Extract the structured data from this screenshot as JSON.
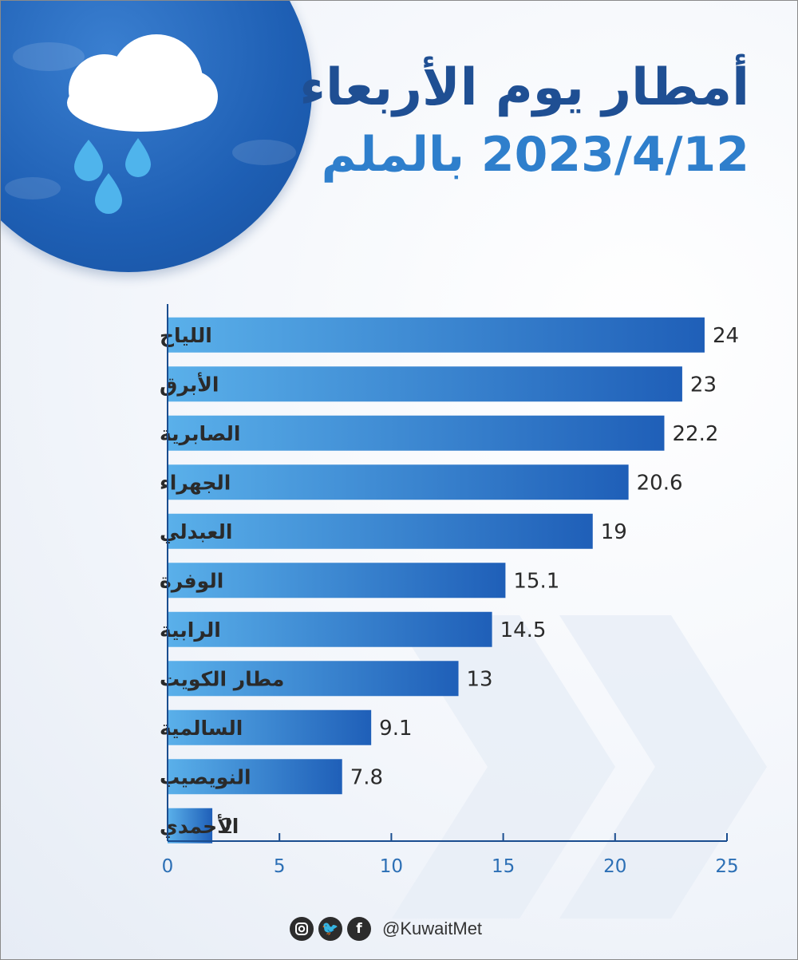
{
  "title": {
    "line1": "أمطار يوم الأربعاء",
    "line2": "2023/4/12 بالملم"
  },
  "footer": {
    "handle": "@KuwaitMet",
    "icons": [
      "instagram-icon",
      "twitter-icon",
      "facebook-icon"
    ],
    "twitter_glyph": "🐦",
    "facebook_glyph": "f"
  },
  "colors": {
    "bar_light": "#5ab0ea",
    "bar_dark": "#1f5fb8",
    "title_dark": "#1f4f93",
    "title_light": "#2f7fcc",
    "axis": "#1a4d8f"
  },
  "chart_data": {
    "type": "bar",
    "orientation": "horizontal",
    "title": "أمطار يوم الأربعاء 2023/4/12 بالملم",
    "categories": [
      "اللياح",
      "الأبرق",
      "الصابرية",
      "الجهراء",
      "العبدلي",
      "الوفرة",
      "الرابية",
      "مطار الكويت",
      "السالمية",
      "النويصيب",
      "الأحمدي"
    ],
    "values": [
      24,
      23,
      22.2,
      20.6,
      19,
      15.1,
      14.5,
      13,
      9.1,
      7.8,
      2
    ],
    "value_labels": [
      "24",
      "23",
      "22.2",
      "20.6",
      "19",
      "15.1",
      "14.5",
      "13",
      "9.1",
      "7.8",
      "2"
    ],
    "xlim": [
      0,
      25
    ],
    "xticks": [
      0,
      5,
      10,
      15,
      20,
      25
    ],
    "xlabel": "",
    "ylabel": "",
    "grid": false,
    "legend": "none"
  }
}
